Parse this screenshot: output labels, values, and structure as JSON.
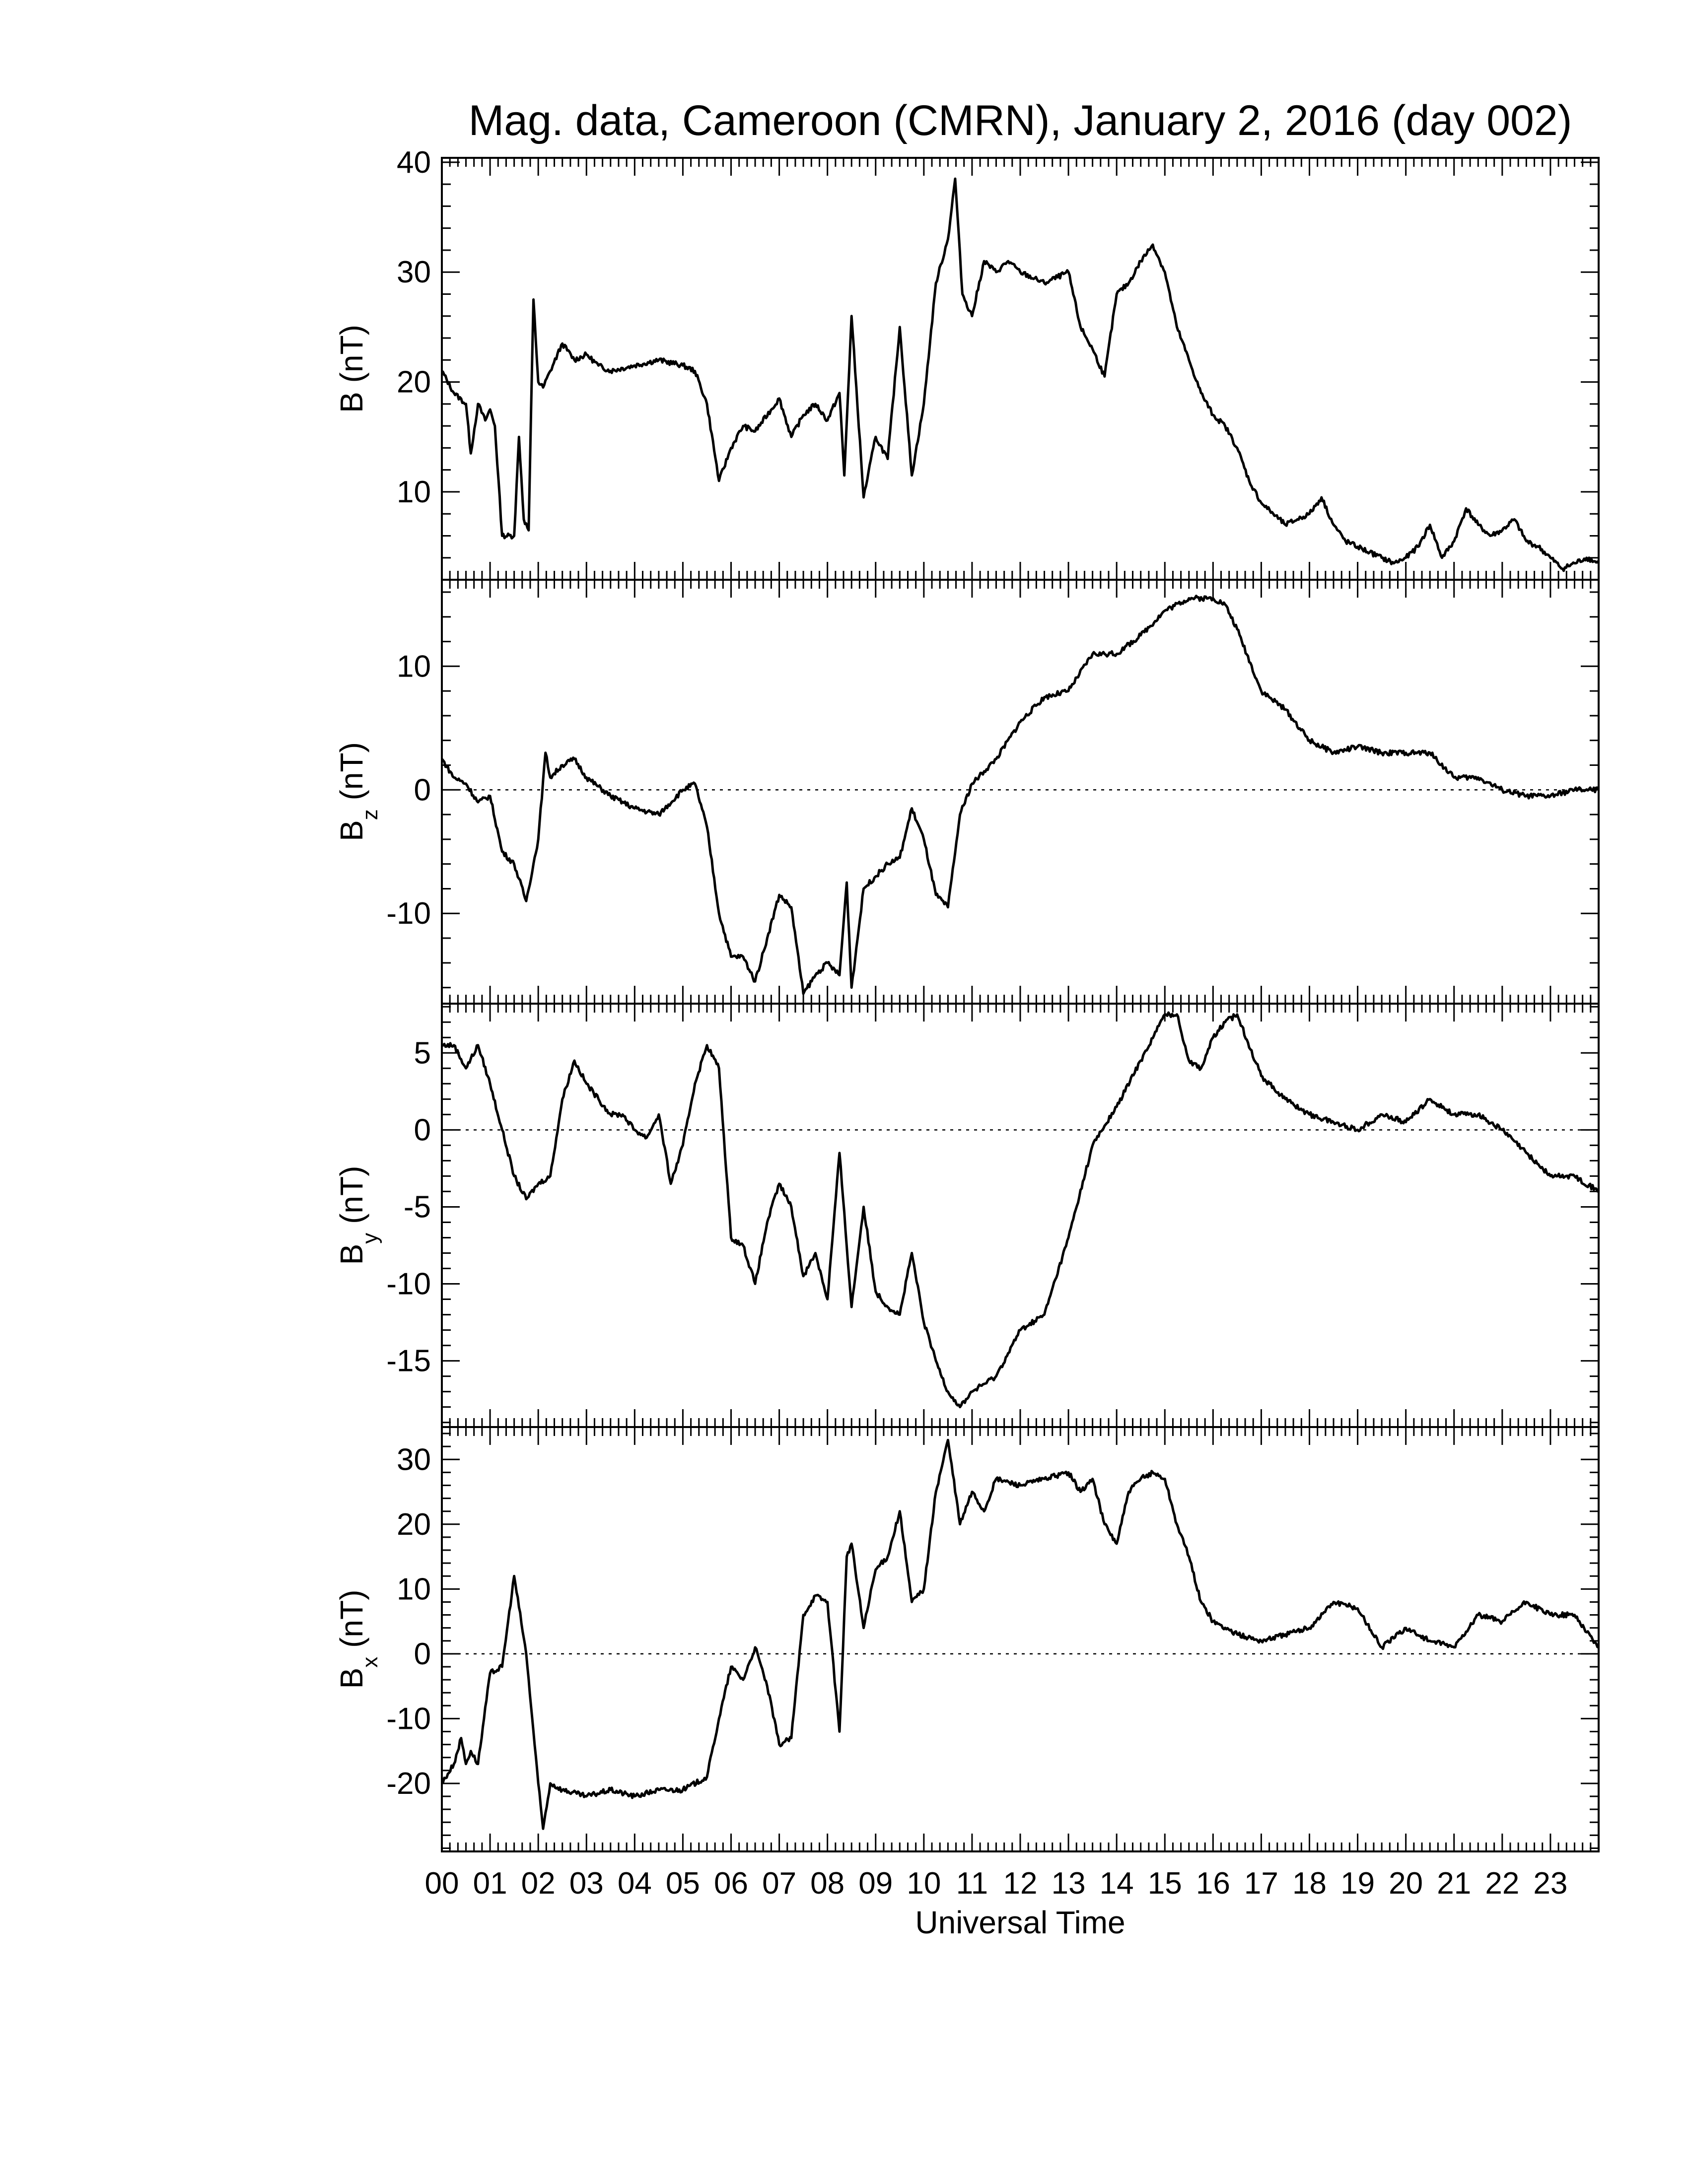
{
  "title": "Mag. data, Cameroon (CMRN), January 2, 2016 (day 002)",
  "chart_data": {
    "type": "line",
    "title": "Mag. data, Cameroon (CMRN), January 2, 2016 (day 002)",
    "xlabel": "Universal Time",
    "xlim": [
      0,
      24
    ],
    "x_tick_labels": [
      "00",
      "01",
      "02",
      "03",
      "04",
      "05",
      "06",
      "07",
      "08",
      "09",
      "10",
      "11",
      "12",
      "13",
      "14",
      "15",
      "16",
      "17",
      "18",
      "19",
      "20",
      "21",
      "22",
      "23"
    ],
    "panels": [
      {
        "id": "B",
        "ylabel_main": "B",
        "ylabel_sub": "",
        "ylabel_unit": " (nT)",
        "ylim": [
          2,
          40.4
        ],
        "yticks": [
          10,
          20,
          30,
          40
        ],
        "zero_line": false,
        "series": [
          {
            "x": [
              0,
              0.25,
              0.5,
              0.6,
              0.75,
              0.9,
              1.0,
              1.1,
              1.25,
              1.5,
              1.6,
              1.7,
              1.8,
              1.9,
              2.0,
              2.1,
              2.25,
              2.5,
              2.75,
              3.0,
              3.25,
              3.5,
              4.0,
              4.5,
              5.0,
              5.25,
              5.5,
              5.75,
              6.0,
              6.25,
              6.5,
              7.0,
              7.25,
              7.5,
              7.75,
              8.0,
              8.25,
              8.35,
              8.5,
              8.75,
              9.0,
              9.25,
              9.5,
              9.75,
              10.0,
              10.25,
              10.5,
              10.65,
              10.8,
              11.0,
              11.25,
              11.5,
              11.75,
              12.0,
              12.5,
              13.0,
              13.25,
              13.5,
              13.75,
              14.0,
              14.25,
              14.5,
              14.75,
              15.0,
              15.25,
              15.5,
              15.75,
              16.0,
              16.25,
              16.5,
              16.75,
              17.0,
              17.25,
              17.5,
              17.75,
              18.0,
              18.25,
              18.5,
              18.75,
              19.0,
              19.25,
              19.5,
              19.75,
              20.0,
              20.25,
              20.5,
              20.75,
              21.0,
              21.25,
              21.5,
              21.75,
              22.0,
              22.25,
              22.5,
              22.75,
              23.0,
              23.25,
              23.5,
              23.75,
              24.0
            ],
            "values": [
              21,
              19,
              18,
              13.5,
              18,
              16.5,
              17.5,
              16,
              6,
              6,
              15,
              7.5,
              6.5,
              27.5,
              20,
              19.5,
              21,
              23.5,
              22,
              22.5,
              21.5,
              21,
              21.5,
              22,
              21.5,
              21,
              18,
              11,
              14,
              16,
              15.5,
              18.5,
              15,
              17,
              18,
              16.5,
              19,
              11.5,
              26,
              9.5,
              15,
              13,
              25,
              11.5,
              18,
              29,
              33,
              38.5,
              28,
              26,
              31,
              30,
              31,
              30,
              29,
              30,
              25,
              23,
              20.5,
              28,
              29,
              31,
              32.5,
              30,
              25,
              22,
              19,
              17,
              16,
              14,
              11,
              9,
              8,
              7,
              7.5,
              8,
              9.5,
              7,
              5.5,
              5,
              4.5,
              4,
              3.5,
              4,
              5,
              7,
              4,
              5.5,
              8.5,
              7,
              6,
              6.5,
              7.5,
              5.5,
              5,
              4,
              3,
              3.5,
              4,
              3.5
            ]
          }
        ]
      },
      {
        "id": "Bz",
        "ylabel_main": "B",
        "ylabel_sub": "z",
        "ylabel_unit": " (nT)",
        "ylim": [
          -17.3,
          17
        ],
        "yticks": [
          -10,
          0,
          10
        ],
        "zero_line": true,
        "series": [
          {
            "x": [
              0,
              0.25,
              0.5,
              0.75,
              1.0,
              1.25,
              1.5,
              1.75,
              2.0,
              2.15,
              2.25,
              2.5,
              2.75,
              3.0,
              3.5,
              4.0,
              4.5,
              5.0,
              5.25,
              5.5,
              5.75,
              6.0,
              6.25,
              6.5,
              6.75,
              7.0,
              7.25,
              7.5,
              7.75,
              8.0,
              8.25,
              8.4,
              8.5,
              8.75,
              9.0,
              9.25,
              9.5,
              9.75,
              10.0,
              10.25,
              10.5,
              10.75,
              11.0,
              11.25,
              11.5,
              12.0,
              12.5,
              13.0,
              13.5,
              14.0,
              14.5,
              15.0,
              15.5,
              16.0,
              16.25,
              16.5,
              17.0,
              17.5,
              18.0,
              18.5,
              19.0,
              19.5,
              20.0,
              20.5,
              21.0,
              21.5,
              22.0,
              22.5,
              23.0,
              23.5,
              24.0
            ],
            "values": [
              2.5,
              1,
              0.5,
              -1,
              -0.5,
              -5,
              -6,
              -9,
              -4,
              3,
              1,
              2,
              2.5,
              1,
              -0.5,
              -1.5,
              -2,
              0,
              0.5,
              -3,
              -10,
              -13.5,
              -13.5,
              -15.5,
              -12,
              -8.5,
              -9.5,
              -16.5,
              -15,
              -14,
              -15,
              -7.5,
              -16,
              -8,
              -7,
              -6,
              -5.5,
              -1.5,
              -4,
              -8.5,
              -9.5,
              -2,
              0.5,
              1.5,
              2.5,
              5.5,
              7.5,
              8,
              11,
              11,
              12.5,
              14.5,
              15.5,
              15.5,
              15,
              13,
              8,
              6.5,
              4,
              3,
              3.5,
              3,
              3,
              3,
              1,
              1,
              0,
              -0.5,
              -0.5,
              0,
              0
            ]
          }
        ]
      },
      {
        "id": "By",
        "ylabel_main": "B",
        "ylabel_sub": "y",
        "ylabel_unit": " (nT)",
        "ylim": [
          -19.3,
          8.2
        ],
        "yticks": [
          -15,
          -10,
          -5,
          0,
          5
        ],
        "zero_line": true,
        "series": [
          {
            "x": [
              0,
              0.25,
              0.5,
              0.75,
              1.0,
              1.25,
              1.5,
              1.75,
              2.0,
              2.25,
              2.5,
              2.75,
              3.0,
              3.25,
              3.5,
              3.75,
              4.0,
              4.25,
              4.5,
              4.75,
              5.0,
              5.25,
              5.5,
              5.75,
              6.0,
              6.25,
              6.5,
              6.75,
              7.0,
              7.25,
              7.5,
              7.75,
              8.0,
              8.25,
              8.5,
              8.75,
              9.0,
              9.25,
              9.5,
              9.75,
              10.0,
              10.25,
              10.5,
              10.75,
              11.0,
              11.25,
              11.5,
              11.75,
              12.0,
              12.5,
              13.0,
              13.5,
              14.0,
              14.5,
              15.0,
              15.25,
              15.5,
              15.75,
              16.0,
              16.25,
              16.5,
              17.0,
              17.5,
              18.0,
              18.5,
              19.0,
              19.5,
              20.0,
              20.5,
              21.0,
              21.5,
              22.0,
              22.5,
              23.0,
              23.5,
              24.0
            ],
            "values": [
              5.5,
              5.5,
              4,
              5.5,
              3,
              0,
              -3,
              -4.5,
              -3.5,
              -3,
              2,
              4.5,
              3,
              2,
              1,
              1,
              0,
              -0.5,
              1,
              -3.5,
              -1,
              3,
              5.5,
              4,
              -7,
              -7.5,
              -10,
              -6,
              -3.5,
              -5,
              -9.5,
              -8,
              -11,
              -1.5,
              -11.5,
              -5,
              -10.5,
              -11.5,
              -12,
              -8,
              -12.5,
              -15,
              -17,
              -18,
              -17,
              -16.5,
              -16,
              -14.5,
              -13,
              -12,
              -7,
              -1,
              1.5,
              4.5,
              7.5,
              7.5,
              4.5,
              4,
              6,
              7,
              7.5,
              3.5,
              2,
              1,
              0.5,
              0,
              1,
              0.5,
              2,
              1,
              1,
              0,
              -1.5,
              -3,
              -3,
              -4
            ]
          }
        ]
      },
      {
        "id": "Bx",
        "ylabel_main": "B",
        "ylabel_sub": "x",
        "ylabel_unit": " (nT)",
        "ylim": [
          -30.5,
          35
        ],
        "yticks": [
          -20,
          -10,
          0,
          10,
          20,
          30
        ],
        "zero_line": true,
        "series": [
          {
            "x": [
              0,
              0.25,
              0.4,
              0.5,
              0.6,
              0.75,
              1.0,
              1.25,
              1.5,
              1.75,
              2.0,
              2.1,
              2.25,
              2.5,
              3.0,
              3.5,
              4.0,
              4.5,
              5.0,
              5.5,
              5.75,
              6.0,
              6.25,
              6.5,
              6.75,
              7.0,
              7.25,
              7.5,
              7.75,
              8.0,
              8.25,
              8.4,
              8.5,
              8.75,
              9.0,
              9.25,
              9.5,
              9.75,
              10.0,
              10.25,
              10.5,
              10.75,
              11.0,
              11.25,
              11.5,
              12.0,
              12.5,
              13.0,
              13.25,
              13.5,
              13.75,
              14.0,
              14.25,
              14.5,
              14.75,
              15.0,
              15.25,
              15.5,
              15.75,
              16.0,
              16.5,
              17.0,
              17.5,
              18.0,
              18.5,
              19.0,
              19.5,
              20.0,
              20.5,
              21.0,
              21.5,
              22.0,
              22.5,
              23.0,
              23.5,
              24.0
            ],
            "values": [
              -20,
              -17,
              -13,
              -17,
              -15,
              -17,
              -3,
              -2,
              12,
              0,
              -20,
              -27,
              -20,
              -21,
              -22,
              -21,
              -22,
              -21,
              -21,
              -19,
              -10,
              -2,
              -4,
              1,
              -5,
              -14,
              -13,
              6,
              9,
              8,
              -12,
              15,
              17,
              4,
              13,
              15,
              22,
              8,
              10,
              25,
              33,
              20,
              25,
              22,
              27,
              26,
              27,
              28,
              25,
              27,
              20,
              17,
              25,
              27,
              28,
              27,
              20,
              15,
              8,
              5,
              3,
              2,
              3,
              4,
              8,
              7,
              1,
              4,
              2,
              1,
              6,
              5,
              8,
              6,
              6,
              1
            ]
          }
        ]
      }
    ]
  }
}
